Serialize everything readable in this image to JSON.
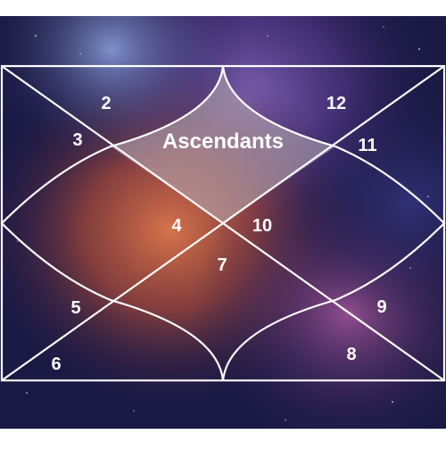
{
  "houses": {
    "ascendant_label": "Ascendants",
    "h2": "2",
    "h3": "3",
    "h4": "4",
    "h5": "5",
    "h6": "6",
    "h7": "7",
    "h8": "8",
    "h9": "9",
    "h10": "10",
    "h11": "11",
    "h12": "12"
  },
  "colors": {
    "background_base": "#1a1640",
    "nebula_orange": "#c8603a",
    "nebula_purple": "#7a4aa8",
    "nebula_blue": "#3b4fa0",
    "ascendant_fill": "#a89aa8",
    "lines": "#ffffff",
    "text": "#ffffff"
  }
}
